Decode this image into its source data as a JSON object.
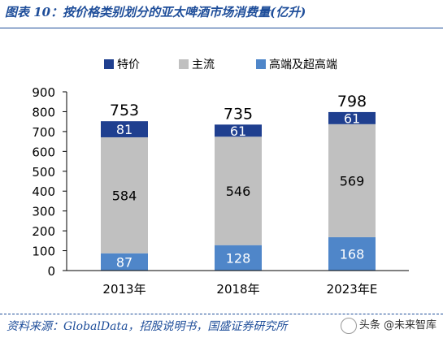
{
  "figure": {
    "title": "图表 10：按价格类别划分的亚太啤酒市场消费量(亿升)",
    "source": "资料来源：GlobalData，招股说明书，国盛证券研究所",
    "watermark": "头条 @未来智库"
  },
  "colors": {
    "frame": "#1f4e9a",
    "特价": "#1f3f8f",
    "主流": "#c0c0c0",
    "高端及超高端": "#4f86c9"
  },
  "chart_data": {
    "type": "bar",
    "stacked": true,
    "categories": [
      "2013年",
      "2018年",
      "2023年E"
    ],
    "series": [
      {
        "name": "高端及超高端",
        "values": [
          87,
          128,
          168
        ],
        "color": "#4f86c9"
      },
      {
        "name": "主流",
        "values": [
          584,
          546,
          569
        ],
        "color": "#c0c0c0"
      },
      {
        "name": "特价",
        "values": [
          81,
          61,
          61
        ],
        "color": "#1f3f8f"
      }
    ],
    "totals": [
      753,
      735,
      798
    ],
    "legend_order": [
      "特价",
      "主流",
      "高端及超高端"
    ],
    "legend_position": "top",
    "ylim": [
      0,
      900
    ],
    "yticks": [
      0,
      100,
      200,
      300,
      400,
      500,
      600,
      700,
      800,
      900
    ],
    "grid": false
  }
}
